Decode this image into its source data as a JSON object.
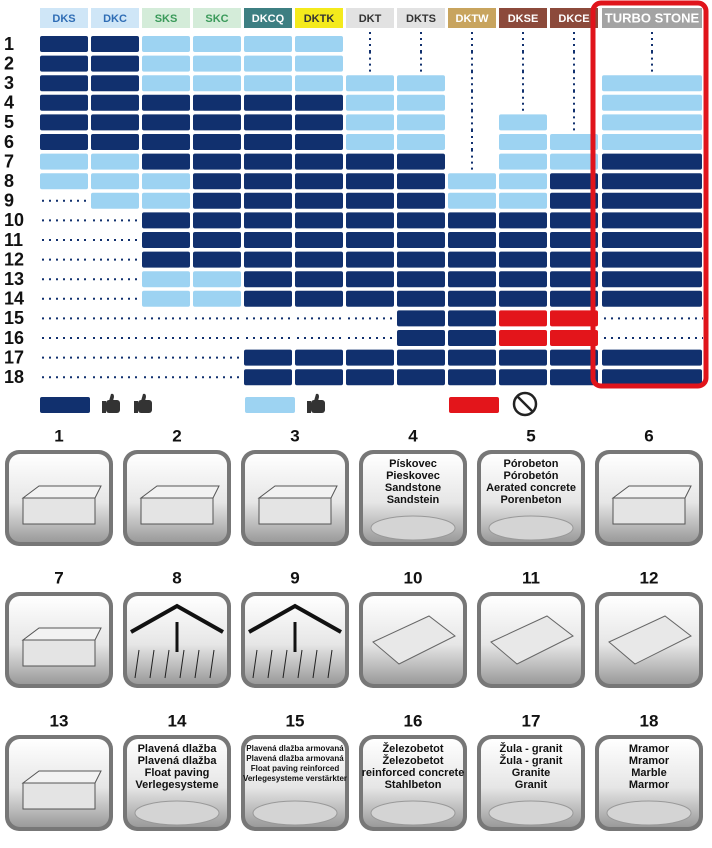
{
  "columns": [
    {
      "label": "DKS",
      "bg": "#cfe6f7",
      "fg": "#2f6db5"
    },
    {
      "label": "DKC",
      "bg": "#cfe6f7",
      "fg": "#2f6db5"
    },
    {
      "label": "SKS",
      "bg": "#d4ecd9",
      "fg": "#3a9a5a"
    },
    {
      "label": "SKC",
      "bg": "#d4ecd9",
      "fg": "#3a9a5a"
    },
    {
      "label": "DKCQ",
      "bg": "#3d7f82",
      "fg": "#ffffff"
    },
    {
      "label": "DKTK",
      "bg": "#f4ea1c",
      "fg": "#333333"
    },
    {
      "label": "DKT",
      "bg": "#e2e2e2",
      "fg": "#333333"
    },
    {
      "label": "DKTS",
      "bg": "#e2e2e2",
      "fg": "#333333"
    },
    {
      "label": "DKTW",
      "bg": "#c8a45e",
      "fg": "#ffffff"
    },
    {
      "label": "DKSE",
      "bg": "#8c4a3b",
      "fg": "#ffffff"
    },
    {
      "label": "DKCE",
      "bg": "#8c4a3b",
      "fg": "#ffffff"
    },
    {
      "label": "TURBO STONE",
      "bg": "#a3a3a3",
      "fg": "#ffffff"
    }
  ],
  "rows": [
    {
      "label": "1",
      "cells": [
        "#11306e",
        "#11306e",
        "#9dd3f2",
        "#9dd3f2",
        "#9dd3f2",
        "#9dd3f2",
        null,
        null,
        null,
        null,
        null,
        null
      ]
    },
    {
      "label": "2",
      "cells": [
        "#11306e",
        "#11306e",
        "#9dd3f2",
        "#9dd3f2",
        "#9dd3f2",
        "#9dd3f2",
        null,
        null,
        null,
        null,
        null,
        null
      ]
    },
    {
      "label": "3",
      "cells": [
        "#11306e",
        "#11306e",
        "#9dd3f2",
        "#9dd3f2",
        "#9dd3f2",
        "#9dd3f2",
        "#9dd3f2",
        "#9dd3f2",
        null,
        null,
        null,
        "#9dd3f2"
      ]
    },
    {
      "label": "4",
      "cells": [
        "#11306e",
        "#11306e",
        "#11306e",
        "#11306e",
        "#11306e",
        "#11306e",
        "#9dd3f2",
        "#9dd3f2",
        null,
        null,
        null,
        "#9dd3f2"
      ]
    },
    {
      "label": "5",
      "cells": [
        "#11306e",
        "#11306e",
        "#11306e",
        "#11306e",
        "#11306e",
        "#11306e",
        "#9dd3f2",
        "#9dd3f2",
        null,
        "#9dd3f2",
        null,
        "#9dd3f2"
      ]
    },
    {
      "label": "6",
      "cells": [
        "#11306e",
        "#11306e",
        "#11306e",
        "#11306e",
        "#11306e",
        "#11306e",
        "#9dd3f2",
        "#9dd3f2",
        null,
        "#9dd3f2",
        "#9dd3f2",
        "#9dd3f2"
      ]
    },
    {
      "label": "7",
      "cells": [
        "#9dd3f2",
        "#9dd3f2",
        "#11306e",
        "#11306e",
        "#11306e",
        "#11306e",
        "#11306e",
        "#11306e",
        null,
        "#9dd3f2",
        "#9dd3f2",
        "#11306e"
      ]
    },
    {
      "label": "8",
      "cells": [
        "#9dd3f2",
        "#9dd3f2",
        "#9dd3f2",
        "#11306e",
        "#11306e",
        "#11306e",
        "#11306e",
        "#11306e",
        "#9dd3f2",
        "#9dd3f2",
        "#11306e",
        "#11306e"
      ]
    },
    {
      "label": "9",
      "cells": [
        null,
        "#9dd3f2",
        "#9dd3f2",
        "#11306e",
        "#11306e",
        "#11306e",
        "#11306e",
        "#11306e",
        "#9dd3f2",
        "#9dd3f2",
        "#11306e",
        "#11306e"
      ]
    },
    {
      "label": "10",
      "cells": [
        null,
        null,
        "#11306e",
        "#11306e",
        "#11306e",
        "#11306e",
        "#11306e",
        "#11306e",
        "#11306e",
        "#11306e",
        "#11306e",
        "#11306e"
      ]
    },
    {
      "label": "11",
      "cells": [
        null,
        null,
        "#11306e",
        "#11306e",
        "#11306e",
        "#11306e",
        "#11306e",
        "#11306e",
        "#11306e",
        "#11306e",
        "#11306e",
        "#11306e"
      ]
    },
    {
      "label": "12",
      "cells": [
        null,
        null,
        "#11306e",
        "#11306e",
        "#11306e",
        "#11306e",
        "#11306e",
        "#11306e",
        "#11306e",
        "#11306e",
        "#11306e",
        "#11306e"
      ]
    },
    {
      "label": "13",
      "cells": [
        null,
        null,
        "#9dd3f2",
        "#9dd3f2",
        "#11306e",
        "#11306e",
        "#11306e",
        "#11306e",
        "#11306e",
        "#11306e",
        "#11306e",
        "#11306e"
      ]
    },
    {
      "label": "14",
      "cells": [
        null,
        null,
        "#9dd3f2",
        "#9dd3f2",
        "#11306e",
        "#11306e",
        "#11306e",
        "#11306e",
        "#11306e",
        "#11306e",
        "#11306e",
        "#11306e"
      ]
    },
    {
      "label": "15",
      "cells": [
        null,
        null,
        null,
        null,
        null,
        null,
        null,
        "#11306e",
        "#11306e",
        "#e3151b",
        "#e3151b",
        null
      ]
    },
    {
      "label": "16",
      "cells": [
        null,
        null,
        null,
        null,
        null,
        null,
        null,
        "#11306e",
        "#11306e",
        "#e3151b",
        "#e3151b",
        null
      ]
    },
    {
      "label": "17",
      "cells": [
        null,
        null,
        null,
        null,
        "#11306e",
        "#11306e",
        "#11306e",
        "#11306e",
        "#11306e",
        "#11306e",
        "#11306e",
        "#11306e"
      ]
    },
    {
      "label": "18",
      "cells": [
        null,
        null,
        null,
        null,
        "#11306e",
        "#11306e",
        "#11306e",
        "#11306e",
        "#11306e",
        "#11306e",
        "#11306e",
        "#11306e"
      ]
    }
  ],
  "highlight_color": "#e0141b",
  "legend": [
    {
      "color": "#11306e",
      "thumbs": 2
    },
    {
      "color": "#9dd3f2",
      "thumbs": 1
    },
    {
      "color": "#e3151b",
      "thumbs": 0
    }
  ],
  "tiles": [
    {
      "number": "1",
      "lines": []
    },
    {
      "number": "2",
      "lines": []
    },
    {
      "number": "3",
      "lines": []
    },
    {
      "number": "4",
      "lines": [
        "Pískovec",
        "Pieskovec",
        "Sandstone",
        "Sandstein"
      ]
    },
    {
      "number": "5",
      "lines": [
        "Pórobeton",
        "Pórobetón",
        "Aerated concrete",
        "Porenbeton"
      ]
    },
    {
      "number": "6",
      "lines": []
    },
    {
      "number": "7",
      "lines": []
    },
    {
      "number": "8",
      "lines": []
    },
    {
      "number": "9",
      "lines": []
    },
    {
      "number": "10",
      "lines": []
    },
    {
      "number": "11",
      "lines": []
    },
    {
      "number": "12",
      "lines": []
    },
    {
      "number": "13",
      "lines": []
    },
    {
      "number": "14",
      "lines": [
        "Plavená dlažba",
        "Plavená dlažba",
        "Float paving",
        "Verlegesysteme"
      ]
    },
    {
      "number": "15",
      "lines": [
        "Plavená dlažba armovaná",
        "Plavená dlažba armovaná",
        "Float paving reinforced",
        "Verlegesysteme verstärkter"
      ]
    },
    {
      "number": "16",
      "lines": [
        "Železobetot",
        "Železobetot",
        "reinforced concrete",
        "Stahlbeton"
      ]
    },
    {
      "number": "17",
      "lines": [
        "Žula - granit",
        "Žula - granit",
        "Granite",
        "Granit"
      ]
    },
    {
      "number": "18",
      "lines": [
        "Mramor",
        "Mramor",
        "Marble",
        "Marmor"
      ]
    }
  ]
}
